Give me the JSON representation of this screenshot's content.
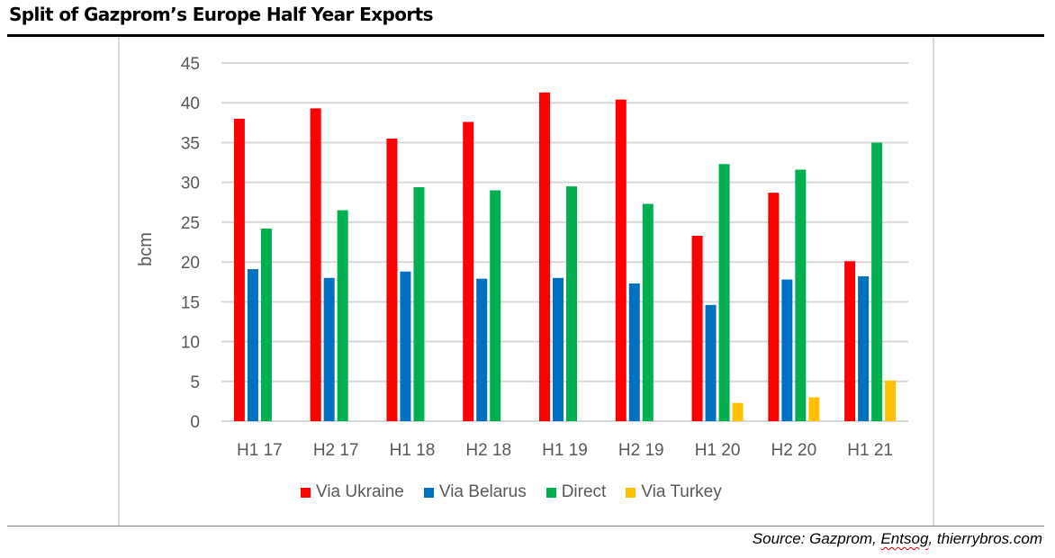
{
  "title": "Split of Gazprom’s Europe Half Year Exports",
  "source": {
    "prefix": "Source: Gazprom, ",
    "flagged": "Entsog",
    "suffix": ", thierrybros.com"
  },
  "chart_data": {
    "type": "bar",
    "title": "Split of Gazprom’s Europe Half Year Exports",
    "xlabel": "",
    "ylabel": "bcm",
    "ylim": [
      0,
      45
    ],
    "yticks": [
      0,
      5,
      10,
      15,
      20,
      25,
      30,
      35,
      40,
      45
    ],
    "grid": true,
    "legend_position": "bottom",
    "categories": [
      "H1 17",
      "H2 17",
      "H1 18",
      "H2 18",
      "H1 19",
      "H2 19",
      "H1 20",
      "H2 20",
      "H1 21"
    ],
    "series": [
      {
        "name": "Via Ukraine",
        "color": "#ff0000",
        "values": [
          38.0,
          39.3,
          35.5,
          37.6,
          41.3,
          40.4,
          23.3,
          28.7,
          20.1
        ]
      },
      {
        "name": "Via Belarus",
        "color": "#0070c0",
        "values": [
          19.1,
          18.0,
          18.8,
          17.9,
          18.0,
          17.3,
          14.6,
          17.8,
          18.2
        ]
      },
      {
        "name": "Direct",
        "color": "#00b050",
        "values": [
          24.2,
          26.5,
          29.4,
          29.0,
          29.5,
          27.3,
          32.3,
          31.6,
          35.0
        ]
      },
      {
        "name": "Via Turkey",
        "color": "#ffc000",
        "values": [
          0,
          0,
          0,
          0,
          0,
          0,
          2.3,
          3.0,
          5.1
        ]
      }
    ]
  }
}
